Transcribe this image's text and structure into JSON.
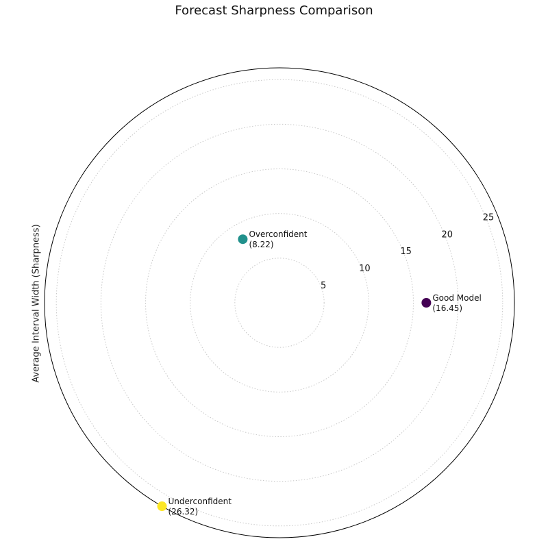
{
  "chart_data": {
    "type": "scatter",
    "projection": "polar",
    "title": "Forecast Sharpness Comparison",
    "ylabel": "Average Interval Width (Sharpness)",
    "r_ticks": [
      5,
      10,
      15,
      20,
      25
    ],
    "r_max": 26.32,
    "grid": true,
    "points": [
      {
        "name": "Good Model",
        "label": "Good Model",
        "value_label": "(16.45)",
        "r": 16.45,
        "theta_deg": 0,
        "color": "#440154"
      },
      {
        "name": "Overconfident",
        "label": "Overconfident",
        "value_label": "(8.22)",
        "r": 8.22,
        "theta_deg": 120,
        "color": "#21918c"
      },
      {
        "name": "Underconfident",
        "label": "Underconfident",
        "value_label": "(26.32)",
        "r": 26.32,
        "theta_deg": 240,
        "color": "#fde725"
      }
    ]
  }
}
